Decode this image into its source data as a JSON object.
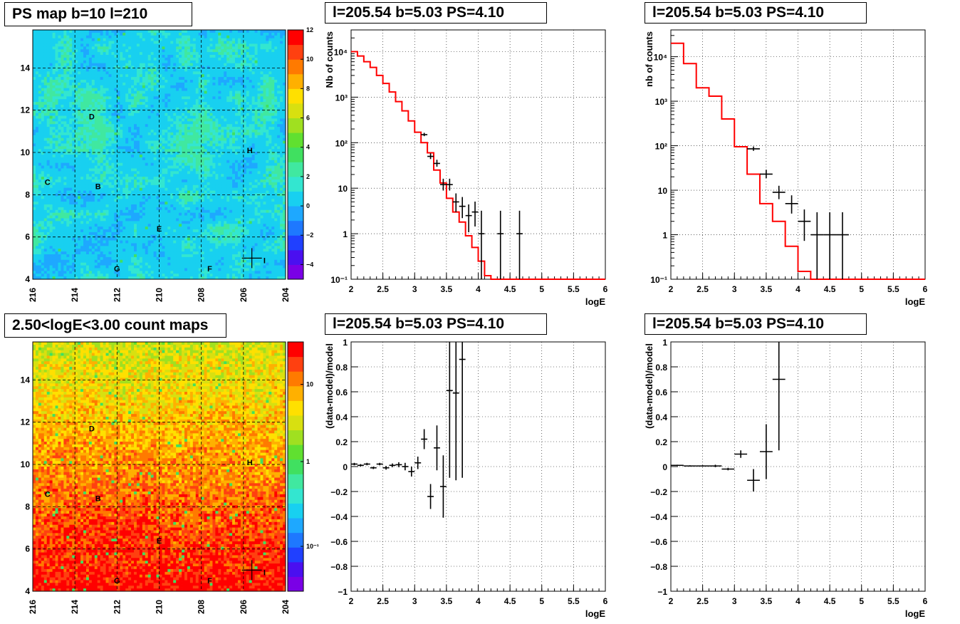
{
  "panels": {
    "map_ps_title": "PS map b=10 l=210",
    "map_counts_title": "2.50<logE<3.00 count maps",
    "spec1_title": "l=205.54 b=5.03 PS=4.10",
    "spec2_title": "l=205.54 b=5.03 PS=4.10",
    "res1_title": "l=205.54 b=5.03 PS=4.10",
    "res2_title": "l=205.54 b=5.03 PS=4.10"
  },
  "maps": {
    "x_ticks": [
      "216",
      "214",
      "212",
      "210",
      "208",
      "206",
      "204"
    ],
    "y_ticks": [
      "4",
      "6",
      "8",
      "10",
      "12",
      "14"
    ],
    "xlim": [
      216,
      204
    ],
    "ylim": [
      4,
      15.8
    ],
    "source_labels": [
      {
        "label": "D",
        "l": 213.2,
        "b": 11.7
      },
      {
        "label": "H",
        "l": 205.7,
        "b": 10.1
      },
      {
        "label": "C",
        "l": 215.3,
        "b": 8.6
      },
      {
        "label": "B",
        "l": 212.9,
        "b": 8.4
      },
      {
        "label": "E",
        "l": 210.0,
        "b": 6.4
      },
      {
        "label": "G",
        "l": 212.0,
        "b": 4.5
      },
      {
        "label": "F",
        "l": 207.6,
        "b": 4.5
      },
      {
        "label": "I",
        "l": 205.0,
        "b": 4.9
      }
    ],
    "marker": {
      "l": 205.6,
      "b": 5.0
    },
    "ps_palette_ticks": [
      "12",
      "10",
      "8",
      "6",
      "4",
      "2",
      "0",
      "−2",
      "−4"
    ],
    "counts_palette_ticks": [
      "10",
      "1",
      "10⁻¹"
    ]
  },
  "chart_data": [
    {
      "type": "line",
      "title": "l=205.54 b=5.03 PS=4.10",
      "xlabel": "logE",
      "ylabel": "Nb of counts",
      "xlim": [
        2,
        6
      ],
      "ylim": [
        0.1,
        30000
      ],
      "yscale": "log",
      "grid": true,
      "x_ticks": [
        "2",
        "2.5",
        "3",
        "3.5",
        "4",
        "4.5",
        "5",
        "5.5",
        "6"
      ],
      "y_ticks": [
        {
          "v": 0.1,
          "label": "10⁻¹"
        },
        {
          "v": 1,
          "label": "1"
        },
        {
          "v": 10,
          "label": "10"
        },
        {
          "v": 100,
          "label": "10²"
        },
        {
          "v": 1000,
          "label": "10³"
        },
        {
          "v": 10000,
          "label": "10⁴"
        }
      ],
      "series": [
        {
          "kind": "model-step",
          "color": "#ff0000",
          "edges": [
            2.0,
            2.1,
            2.2,
            2.3,
            2.4,
            2.5,
            2.6,
            2.7,
            2.8,
            2.9,
            3.0,
            3.1,
            3.2,
            3.3,
            3.4,
            3.5,
            3.6,
            3.7,
            3.8,
            3.9,
            4.0,
            4.1,
            4.2,
            6.0
          ],
          "values": [
            10000,
            8000,
            6000,
            4500,
            3000,
            2000,
            1300,
            800,
            500,
            300,
            170,
            100,
            60,
            25,
            13,
            6,
            3,
            1.8,
            0.9,
            0.5,
            0.25,
            0.12,
            0.1
          ]
        },
        {
          "kind": "data-points",
          "color": "#000000",
          "x": [
            3.15,
            3.25,
            3.35,
            3.45,
            3.55,
            3.65,
            3.75,
            3.85,
            3.95,
            4.05,
            4.35,
            4.65
          ],
          "y": [
            150,
            50,
            35,
            12,
            12,
            5,
            4,
            2.5,
            3,
            1,
            1,
            1
          ],
          "xerr": 0.05
        }
      ]
    },
    {
      "type": "line",
      "title": "l=205.54 b=5.03 PS=4.10",
      "xlabel": "logE",
      "ylabel": "nb of counts",
      "xlim": [
        2,
        6
      ],
      "ylim": [
        0.1,
        40000
      ],
      "yscale": "log",
      "grid": true,
      "x_ticks": [
        "2",
        "2.5",
        "3",
        "3.5",
        "4",
        "4.5",
        "5",
        "5.5",
        "6"
      ],
      "y_ticks": [
        {
          "v": 0.1,
          "label": "10⁻¹"
        },
        {
          "v": 1,
          "label": "1"
        },
        {
          "v": 10,
          "label": "10"
        },
        {
          "v": 100,
          "label": "10²"
        },
        {
          "v": 1000,
          "label": "10³"
        },
        {
          "v": 10000,
          "label": "10⁴"
        }
      ],
      "series": [
        {
          "kind": "model-step",
          "color": "#ff0000",
          "edges": [
            2.0,
            2.2,
            2.4,
            2.6,
            2.8,
            3.0,
            3.2,
            3.4,
            3.6,
            3.8,
            4.0,
            4.2,
            4.4,
            6.0
          ],
          "values": [
            20000,
            7000,
            2000,
            1300,
            400,
            95,
            23,
            5,
            2,
            0.55,
            0.15,
            0.1,
            0.1
          ]
        },
        {
          "kind": "data-points",
          "color": "#000000",
          "x": [
            3.3,
            3.5,
            3.7,
            3.9,
            4.1,
            4.3,
            4.5,
            4.7
          ],
          "y": [
            85,
            23,
            9,
            5,
            2,
            1,
            1,
            1
          ],
          "xerr": 0.1
        }
      ]
    },
    {
      "type": "scatter",
      "title": "l=205.54 b=5.03 PS=4.10",
      "xlabel": "logE",
      "ylabel": "(data-model)/model",
      "xlim": [
        2,
        6
      ],
      "ylim": [
        -1,
        1
      ],
      "grid": true,
      "x_ticks": [
        "2",
        "2.5",
        "3",
        "3.5",
        "4",
        "4.5",
        "5",
        "5.5",
        "6"
      ],
      "y_ticks": [
        "−1",
        "−0.8",
        "−0.6",
        "−0.4",
        "−0.2",
        "0",
        "0.2",
        "0.4",
        "0.6",
        "0.8",
        "1"
      ],
      "series": [
        {
          "kind": "residuals",
          "color": "#000000",
          "xerr": 0.05,
          "x": [
            2.05,
            2.15,
            2.25,
            2.35,
            2.45,
            2.55,
            2.65,
            2.75,
            2.85,
            2.95,
            3.05,
            3.15,
            3.25,
            3.35,
            3.45,
            3.55,
            3.65,
            3.75
          ],
          "y": [
            0.02,
            0.01,
            0.02,
            -0.01,
            0.02,
            -0.01,
            0.01,
            0.015,
            0.0,
            -0.04,
            0.03,
            0.22,
            -0.24,
            0.15,
            -0.16,
            0.61,
            0.59,
            0.86
          ],
          "err": [
            0.01,
            0.01,
            0.01,
            0.01,
            0.01,
            0.015,
            0.015,
            0.02,
            0.03,
            0.04,
            0.05,
            0.08,
            0.1,
            0.18,
            0.25,
            0.7,
            0.7,
            0.95
          ]
        }
      ]
    },
    {
      "type": "scatter",
      "title": "l=205.54 b=5.03 PS=4.10",
      "xlabel": "logE",
      "ylabel": "(data-model)/model",
      "xlim": [
        2,
        6
      ],
      "ylim": [
        -1,
        1
      ],
      "grid": true,
      "x_ticks": [
        "2",
        "2.5",
        "3",
        "3.5",
        "4",
        "4.5",
        "5",
        "5.5",
        "6"
      ],
      "y_ticks": [
        "−1",
        "−0.8",
        "−0.6",
        "−0.4",
        "−0.2",
        "0",
        "0.2",
        "0.4",
        "0.6",
        "0.8",
        "1"
      ],
      "series": [
        {
          "kind": "residuals",
          "color": "#000000",
          "xerr": 0.1,
          "x": [
            2.1,
            2.3,
            2.5,
            2.7,
            2.9,
            3.1,
            3.3,
            3.5,
            3.7
          ],
          "y": [
            0.01,
            0.005,
            0.005,
            0.005,
            -0.02,
            0.1,
            -0.11,
            0.12,
            0.7
          ],
          "err": [
            0.005,
            0.005,
            0.005,
            0.01,
            0.01,
            0.03,
            0.09,
            0.22,
            0.57
          ]
        }
      ]
    }
  ]
}
